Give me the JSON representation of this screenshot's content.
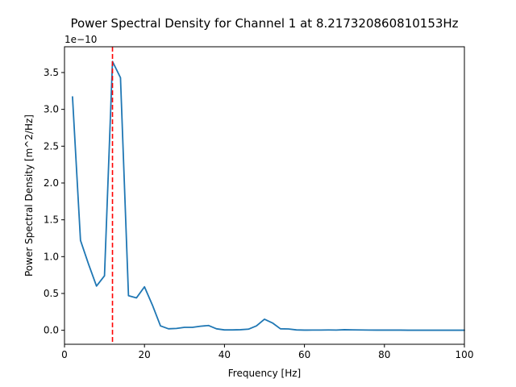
{
  "chart_data": {
    "type": "line",
    "title": "Power Spectral Density for Channel 1 at 8.217320860810153Hz",
    "xlabel": "Frequency [Hz]",
    "ylabel": "Power Spectral Density [m^2/Hz]",
    "offset_label": "1e−10",
    "xlim": [
      0,
      100
    ],
    "ylim": [
      -0.19,
      3.85
    ],
    "grid": false,
    "xticks": [
      0,
      20,
      40,
      60,
      80,
      100
    ],
    "xtick_labels": [
      "0",
      "20",
      "40",
      "60",
      "80",
      "100"
    ],
    "yticks": [
      0.0,
      0.5,
      1.0,
      1.5,
      2.0,
      2.5,
      3.0,
      3.5
    ],
    "ytick_labels": [
      "0.0",
      "0.5",
      "1.0",
      "1.5",
      "2.0",
      "2.5",
      "3.0",
      "3.5"
    ],
    "series": [
      {
        "color": "#1f77b4",
        "x": [
          2,
          4,
          6,
          8,
          10,
          12,
          14,
          16,
          18,
          20,
          22,
          24,
          26,
          28,
          30,
          32,
          34,
          36,
          38,
          40,
          42,
          44,
          46,
          48,
          50,
          52,
          54,
          56,
          58,
          60,
          62,
          64,
          66,
          68,
          70,
          72,
          74,
          76,
          78,
          80,
          82,
          84,
          86,
          88,
          90,
          92,
          94,
          96,
          98,
          100
        ],
        "y": [
          3.17,
          1.22,
          0.9,
          0.6,
          0.74,
          3.65,
          3.43,
          0.47,
          0.44,
          0.59,
          0.34,
          0.06,
          0.02,
          0.025,
          0.04,
          0.04,
          0.055,
          0.065,
          0.02,
          0.005,
          0.005,
          0.008,
          0.015,
          0.06,
          0.15,
          0.1,
          0.02,
          0.018,
          0.005,
          0.002,
          0.003,
          0.003,
          0.004,
          0.003,
          0.008,
          0.006,
          0.004,
          0.003,
          0.002,
          0.002,
          0.002,
          0.002,
          0.001,
          0.001,
          0.001,
          0.001,
          0.001,
          0.001,
          0.001,
          0.001
        ]
      }
    ],
    "vline": {
      "x": 12,
      "color": "#ff0000",
      "style": "dashed"
    }
  }
}
